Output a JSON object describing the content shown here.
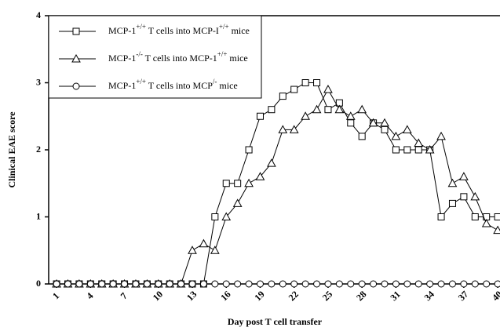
{
  "chart_data": {
    "type": "line",
    "xlabel": "Day post T cell transfer",
    "ylabel": "Clinical EAE score",
    "x": [
      1,
      2,
      3,
      4,
      5,
      6,
      7,
      8,
      9,
      10,
      11,
      12,
      13,
      14,
      15,
      16,
      17,
      18,
      19,
      20,
      21,
      22,
      23,
      24,
      25,
      26,
      27,
      28,
      29,
      30,
      31,
      32,
      33,
      34,
      35,
      36,
      37,
      38,
      39,
      40
    ],
    "series": [
      {
        "name": "MCP-1+/+ T cells into MCP-I+/+ mice",
        "marker": "square",
        "color": "#000000",
        "values": [
          0,
          0,
          0,
          0,
          0,
          0,
          0,
          0,
          0,
          0,
          0,
          0,
          0,
          0,
          1.0,
          1.5,
          1.5,
          2.0,
          2.5,
          2.6,
          2.8,
          2.9,
          3.0,
          3.0,
          2.6,
          2.7,
          2.4,
          2.2,
          2.4,
          2.3,
          2.0,
          2.0,
          2.0,
          2.0,
          1.0,
          1.2,
          1.3,
          1.0,
          1.0,
          1.0
        ]
      },
      {
        "name": "MCP-1-/- T cells into MCP-1+/+ mice",
        "marker": "triangle",
        "color": "#000000",
        "values": [
          0,
          0,
          0,
          0,
          0,
          0,
          0,
          0,
          0,
          0,
          0,
          0,
          0.5,
          0.6,
          0.5,
          1.0,
          1.2,
          1.5,
          1.6,
          1.8,
          2.3,
          2.3,
          2.5,
          2.6,
          2.9,
          2.6,
          2.5,
          2.6,
          2.4,
          2.4,
          2.2,
          2.3,
          2.1,
          2.0,
          2.2,
          1.5,
          1.6,
          1.3,
          0.9,
          0.8
        ]
      },
      {
        "name": "MCP-1+/+ T cells into MCP/- mice",
        "marker": "circle",
        "color": "#000000",
        "values": [
          0,
          0,
          0,
          0,
          0,
          0,
          0,
          0,
          0,
          0,
          0,
          0,
          0,
          0,
          0,
          0,
          0,
          0,
          0,
          0,
          0,
          0,
          0,
          0,
          0,
          0,
          0,
          0,
          0,
          0,
          0,
          0,
          0,
          0,
          0,
          0,
          0,
          0,
          0,
          0
        ]
      }
    ],
    "xlim": [
      0.3,
      40.2
    ],
    "xticks": [
      1,
      4,
      7,
      10,
      13,
      16,
      19,
      22,
      25,
      28,
      31,
      34,
      37,
      40
    ],
    "ylim": [
      0,
      4
    ],
    "yticks": [
      0,
      1,
      2,
      3,
      4
    ],
    "legend": "upper left"
  }
}
